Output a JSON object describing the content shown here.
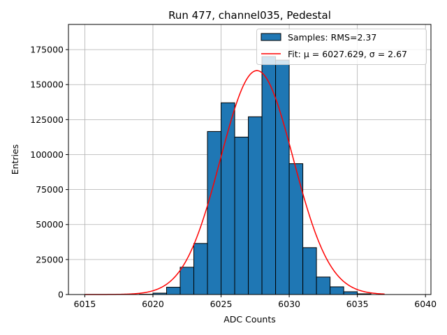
{
  "chart_data": {
    "type": "bar",
    "title": "Run 477, channel035, Pedestal",
    "xlabel": "ADC Counts",
    "ylabel": "Entries",
    "xlim": [
      6013.8,
      6040.4
    ],
    "ylim": [
      0,
      193000
    ],
    "grid": true,
    "xticks": [
      6015,
      6020,
      6025,
      6030,
      6035,
      6040
    ],
    "yticks": [
      0,
      25000,
      50000,
      75000,
      100000,
      125000,
      150000,
      175000
    ],
    "bins": [
      {
        "x0": 6019,
        "x1": 6020,
        "count": 200
      },
      {
        "x0": 6020,
        "x1": 6021,
        "count": 1000
      },
      {
        "x0": 6021,
        "x1": 6022,
        "count": 5200
      },
      {
        "x0": 6022,
        "x1": 6023,
        "count": 19500
      },
      {
        "x0": 6023,
        "x1": 6024,
        "count": 36500
      },
      {
        "x0": 6024,
        "x1": 6025,
        "count": 116500
      },
      {
        "x0": 6025,
        "x1": 6026,
        "count": 137000
      },
      {
        "x0": 6026,
        "x1": 6027,
        "count": 112500
      },
      {
        "x0": 6027,
        "x1": 6028,
        "count": 127000
      },
      {
        "x0": 6028,
        "x1": 6029,
        "count": 170000
      },
      {
        "x0": 6029,
        "x1": 6030,
        "count": 167500
      },
      {
        "x0": 6030,
        "x1": 6031,
        "count": 93500
      },
      {
        "x0": 6031,
        "x1": 6032,
        "count": 33500
      },
      {
        "x0": 6032,
        "x1": 6033,
        "count": 12500
      },
      {
        "x0": 6033,
        "x1": 6034,
        "count": 5500
      },
      {
        "x0": 6034,
        "x1": 6035,
        "count": 2000
      },
      {
        "x0": 6035,
        "x1": 6036,
        "count": 500
      }
    ],
    "fit": {
      "function": "gaussian",
      "amplitude": 160000,
      "mu": 6027.629,
      "sigma": 2.67,
      "x_range": [
        6015,
        6037
      ]
    },
    "legend": {
      "position": "top-right",
      "entries": [
        {
          "label": "Samples: RMS=2.37",
          "kind": "patch",
          "color": "#1f77b4"
        },
        {
          "label": "Fit: μ = 6027.629, σ = 2.67",
          "kind": "line",
          "color": "#ff0000"
        }
      ]
    },
    "colors": {
      "bar_fill": "#1f77b4",
      "bar_edge": "#000000",
      "fit_line": "#ff0000",
      "grid": "#b0b0b0"
    }
  }
}
